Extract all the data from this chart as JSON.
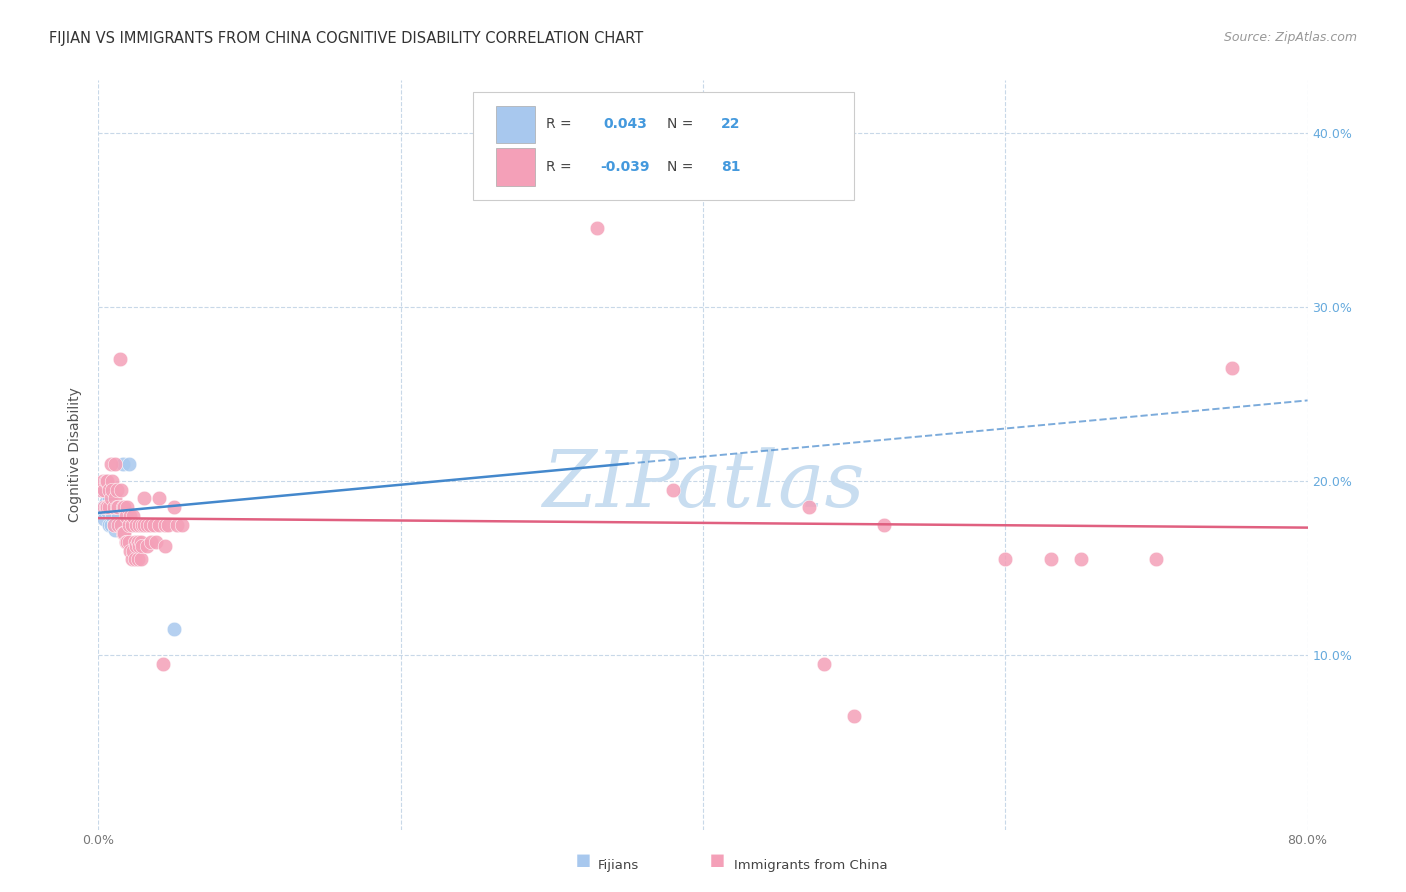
{
  "title": "FIJIAN VS IMMIGRANTS FROM CHINA COGNITIVE DISABILITY CORRELATION CHART",
  "source": "Source: ZipAtlas.com",
  "ylabel": "Cognitive Disability",
  "xlim": [
    0.0,
    0.8
  ],
  "ylim": [
    0.0,
    0.43
  ],
  "background_color": "#ffffff",
  "grid_color": "#c8d8e8",
  "fijian_color": "#a8c8ee",
  "china_color": "#f4a0b8",
  "fijian_line_color": "#4488cc",
  "china_line_color": "#e06080",
  "right_tick_color": "#66aadd",
  "title_color": "#333333",
  "watermark_color": "#c8ddf0",
  "legend_R_color": "#4499dd",
  "legend_N_color": "#4499dd",
  "fijian_points": [
    [
      0.002,
      0.195
    ],
    [
      0.003,
      0.185
    ],
    [
      0.004,
      0.183
    ],
    [
      0.004,
      0.178
    ],
    [
      0.005,
      0.2
    ],
    [
      0.005,
      0.195
    ],
    [
      0.005,
      0.188
    ],
    [
      0.006,
      0.183
    ],
    [
      0.006,
      0.195
    ],
    [
      0.007,
      0.175
    ],
    [
      0.007,
      0.19
    ],
    [
      0.008,
      0.183
    ],
    [
      0.008,
      0.175
    ],
    [
      0.009,
      0.18
    ],
    [
      0.01,
      0.175
    ],
    [
      0.011,
      0.172
    ],
    [
      0.012,
      0.175
    ],
    [
      0.013,
      0.18
    ],
    [
      0.015,
      0.175
    ],
    [
      0.016,
      0.21
    ],
    [
      0.02,
      0.21
    ],
    [
      0.05,
      0.115
    ]
  ],
  "china_points": [
    [
      0.002,
      0.195
    ],
    [
      0.003,
      0.2
    ],
    [
      0.004,
      0.195
    ],
    [
      0.004,
      0.185
    ],
    [
      0.005,
      0.2
    ],
    [
      0.005,
      0.185
    ],
    [
      0.006,
      0.2
    ],
    [
      0.006,
      0.185
    ],
    [
      0.007,
      0.195
    ],
    [
      0.007,
      0.185
    ],
    [
      0.008,
      0.21
    ],
    [
      0.008,
      0.19
    ],
    [
      0.009,
      0.2
    ],
    [
      0.009,
      0.195
    ],
    [
      0.01,
      0.185
    ],
    [
      0.01,
      0.175
    ],
    [
      0.011,
      0.21
    ],
    [
      0.011,
      0.19
    ],
    [
      0.012,
      0.195
    ],
    [
      0.012,
      0.185
    ],
    [
      0.013,
      0.185
    ],
    [
      0.013,
      0.175
    ],
    [
      0.014,
      0.27
    ],
    [
      0.015,
      0.195
    ],
    [
      0.015,
      0.175
    ],
    [
      0.016,
      0.185
    ],
    [
      0.016,
      0.17
    ],
    [
      0.017,
      0.185
    ],
    [
      0.017,
      0.17
    ],
    [
      0.018,
      0.18
    ],
    [
      0.018,
      0.165
    ],
    [
      0.019,
      0.185
    ],
    [
      0.019,
      0.165
    ],
    [
      0.02,
      0.175
    ],
    [
      0.02,
      0.165
    ],
    [
      0.021,
      0.18
    ],
    [
      0.021,
      0.16
    ],
    [
      0.022,
      0.175
    ],
    [
      0.022,
      0.155
    ],
    [
      0.023,
      0.18
    ],
    [
      0.023,
      0.16
    ],
    [
      0.024,
      0.165
    ],
    [
      0.024,
      0.155
    ],
    [
      0.025,
      0.175
    ],
    [
      0.025,
      0.163
    ],
    [
      0.026,
      0.165
    ],
    [
      0.026,
      0.155
    ],
    [
      0.027,
      0.175
    ],
    [
      0.027,
      0.163
    ],
    [
      0.028,
      0.165
    ],
    [
      0.028,
      0.155
    ],
    [
      0.029,
      0.175
    ],
    [
      0.029,
      0.163
    ],
    [
      0.03,
      0.19
    ],
    [
      0.03,
      0.175
    ],
    [
      0.032,
      0.175
    ],
    [
      0.032,
      0.163
    ],
    [
      0.034,
      0.175
    ],
    [
      0.035,
      0.165
    ],
    [
      0.037,
      0.175
    ],
    [
      0.038,
      0.165
    ],
    [
      0.04,
      0.19
    ],
    [
      0.04,
      0.175
    ],
    [
      0.043,
      0.095
    ],
    [
      0.044,
      0.175
    ],
    [
      0.044,
      0.163
    ],
    [
      0.046,
      0.175
    ],
    [
      0.05,
      0.185
    ],
    [
      0.052,
      0.175
    ],
    [
      0.055,
      0.175
    ],
    [
      0.33,
      0.345
    ],
    [
      0.38,
      0.195
    ],
    [
      0.47,
      0.185
    ],
    [
      0.48,
      0.095
    ],
    [
      0.5,
      0.065
    ],
    [
      0.52,
      0.175
    ],
    [
      0.6,
      0.155
    ],
    [
      0.63,
      0.155
    ],
    [
      0.65,
      0.155
    ],
    [
      0.7,
      0.155
    ],
    [
      0.75,
      0.265
    ]
  ]
}
